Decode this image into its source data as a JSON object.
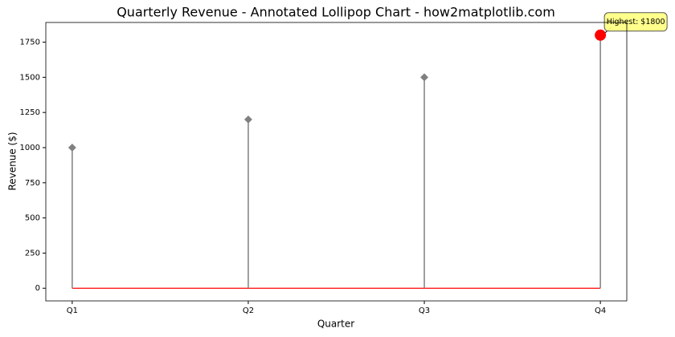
{
  "chart_data": {
    "type": "lollipop",
    "title": "Quarterly Revenue - Annotated Lollipop Chart - how2matplotlib.com",
    "xlabel": "Quarter",
    "ylabel": "Revenue ($)",
    "categories": [
      "Q1",
      "Q2",
      "Q3",
      "Q4"
    ],
    "values": [
      1000,
      1200,
      1500,
      1800
    ],
    "color": "#808080",
    "baseline_color": "#ff0000",
    "highlight_color": "#ff0000",
    "annotation": "Highest: $1800",
    "ylim": [
      -90,
      1890
    ],
    "yticks": [
      0,
      250,
      500,
      750,
      1000,
      1250,
      1500,
      1750
    ]
  }
}
